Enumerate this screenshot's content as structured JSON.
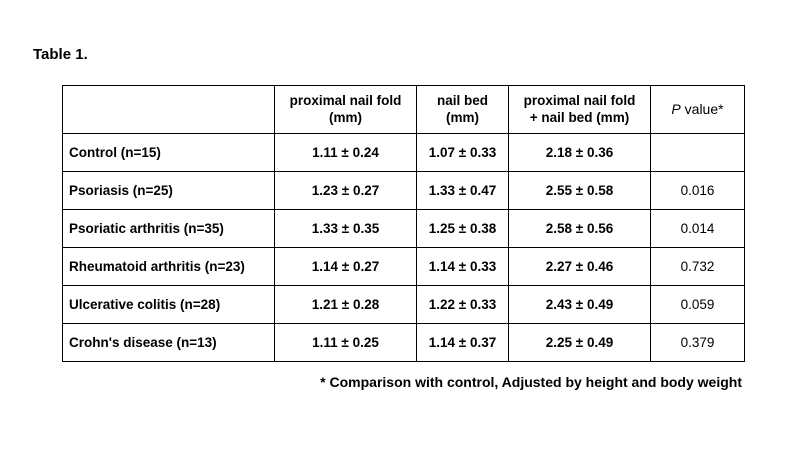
{
  "page": {
    "title": "Table 1."
  },
  "table": {
    "headers": {
      "label": "",
      "col1": "proximal nail fold\n(mm)",
      "col2": "nail bed\n(mm)",
      "col3": "proximal nail fold\n+ nail bed (mm)",
      "pval_italic": "P",
      "pval_rest": " value*"
    },
    "rows": [
      {
        "label": "Control (n=15)",
        "v1": "1.11 ± 0.24",
        "v2": "1.07 ± 0.33",
        "v3": "2.18 ± 0.36",
        "p": ""
      },
      {
        "label": "Psoriasis (n=25)",
        "v1": "1.23 ± 0.27",
        "v2": "1.33 ± 0.47",
        "v3": "2.55 ± 0.58",
        "p": "0.016"
      },
      {
        "label": "Psoriatic arthritis (n=35)",
        "v1": "1.33 ± 0.35",
        "v2": "1.25 ± 0.38",
        "v3": "2.58 ± 0.56",
        "p": "0.014"
      },
      {
        "label": "Rheumatoid arthritis (n=23)",
        "v1": "1.14 ± 0.27",
        "v2": "1.14 ± 0.33",
        "v3": "2.27 ± 0.46",
        "p": "0.732"
      },
      {
        "label": "Ulcerative colitis  (n=28)",
        "v1": "1.21 ± 0.28",
        "v2": "1.22 ± 0.33",
        "v3": "2.43 ± 0.49",
        "p": "0.059"
      },
      {
        "label": "Crohn's disease (n=13)",
        "v1": "1.11 ± 0.25",
        "v2": "1.14 ± 0.37",
        "v3": "2.25 ± 0.49",
        "p": "0.379"
      }
    ],
    "footnote": "* Comparison with control, Adjusted by height and body weight"
  }
}
